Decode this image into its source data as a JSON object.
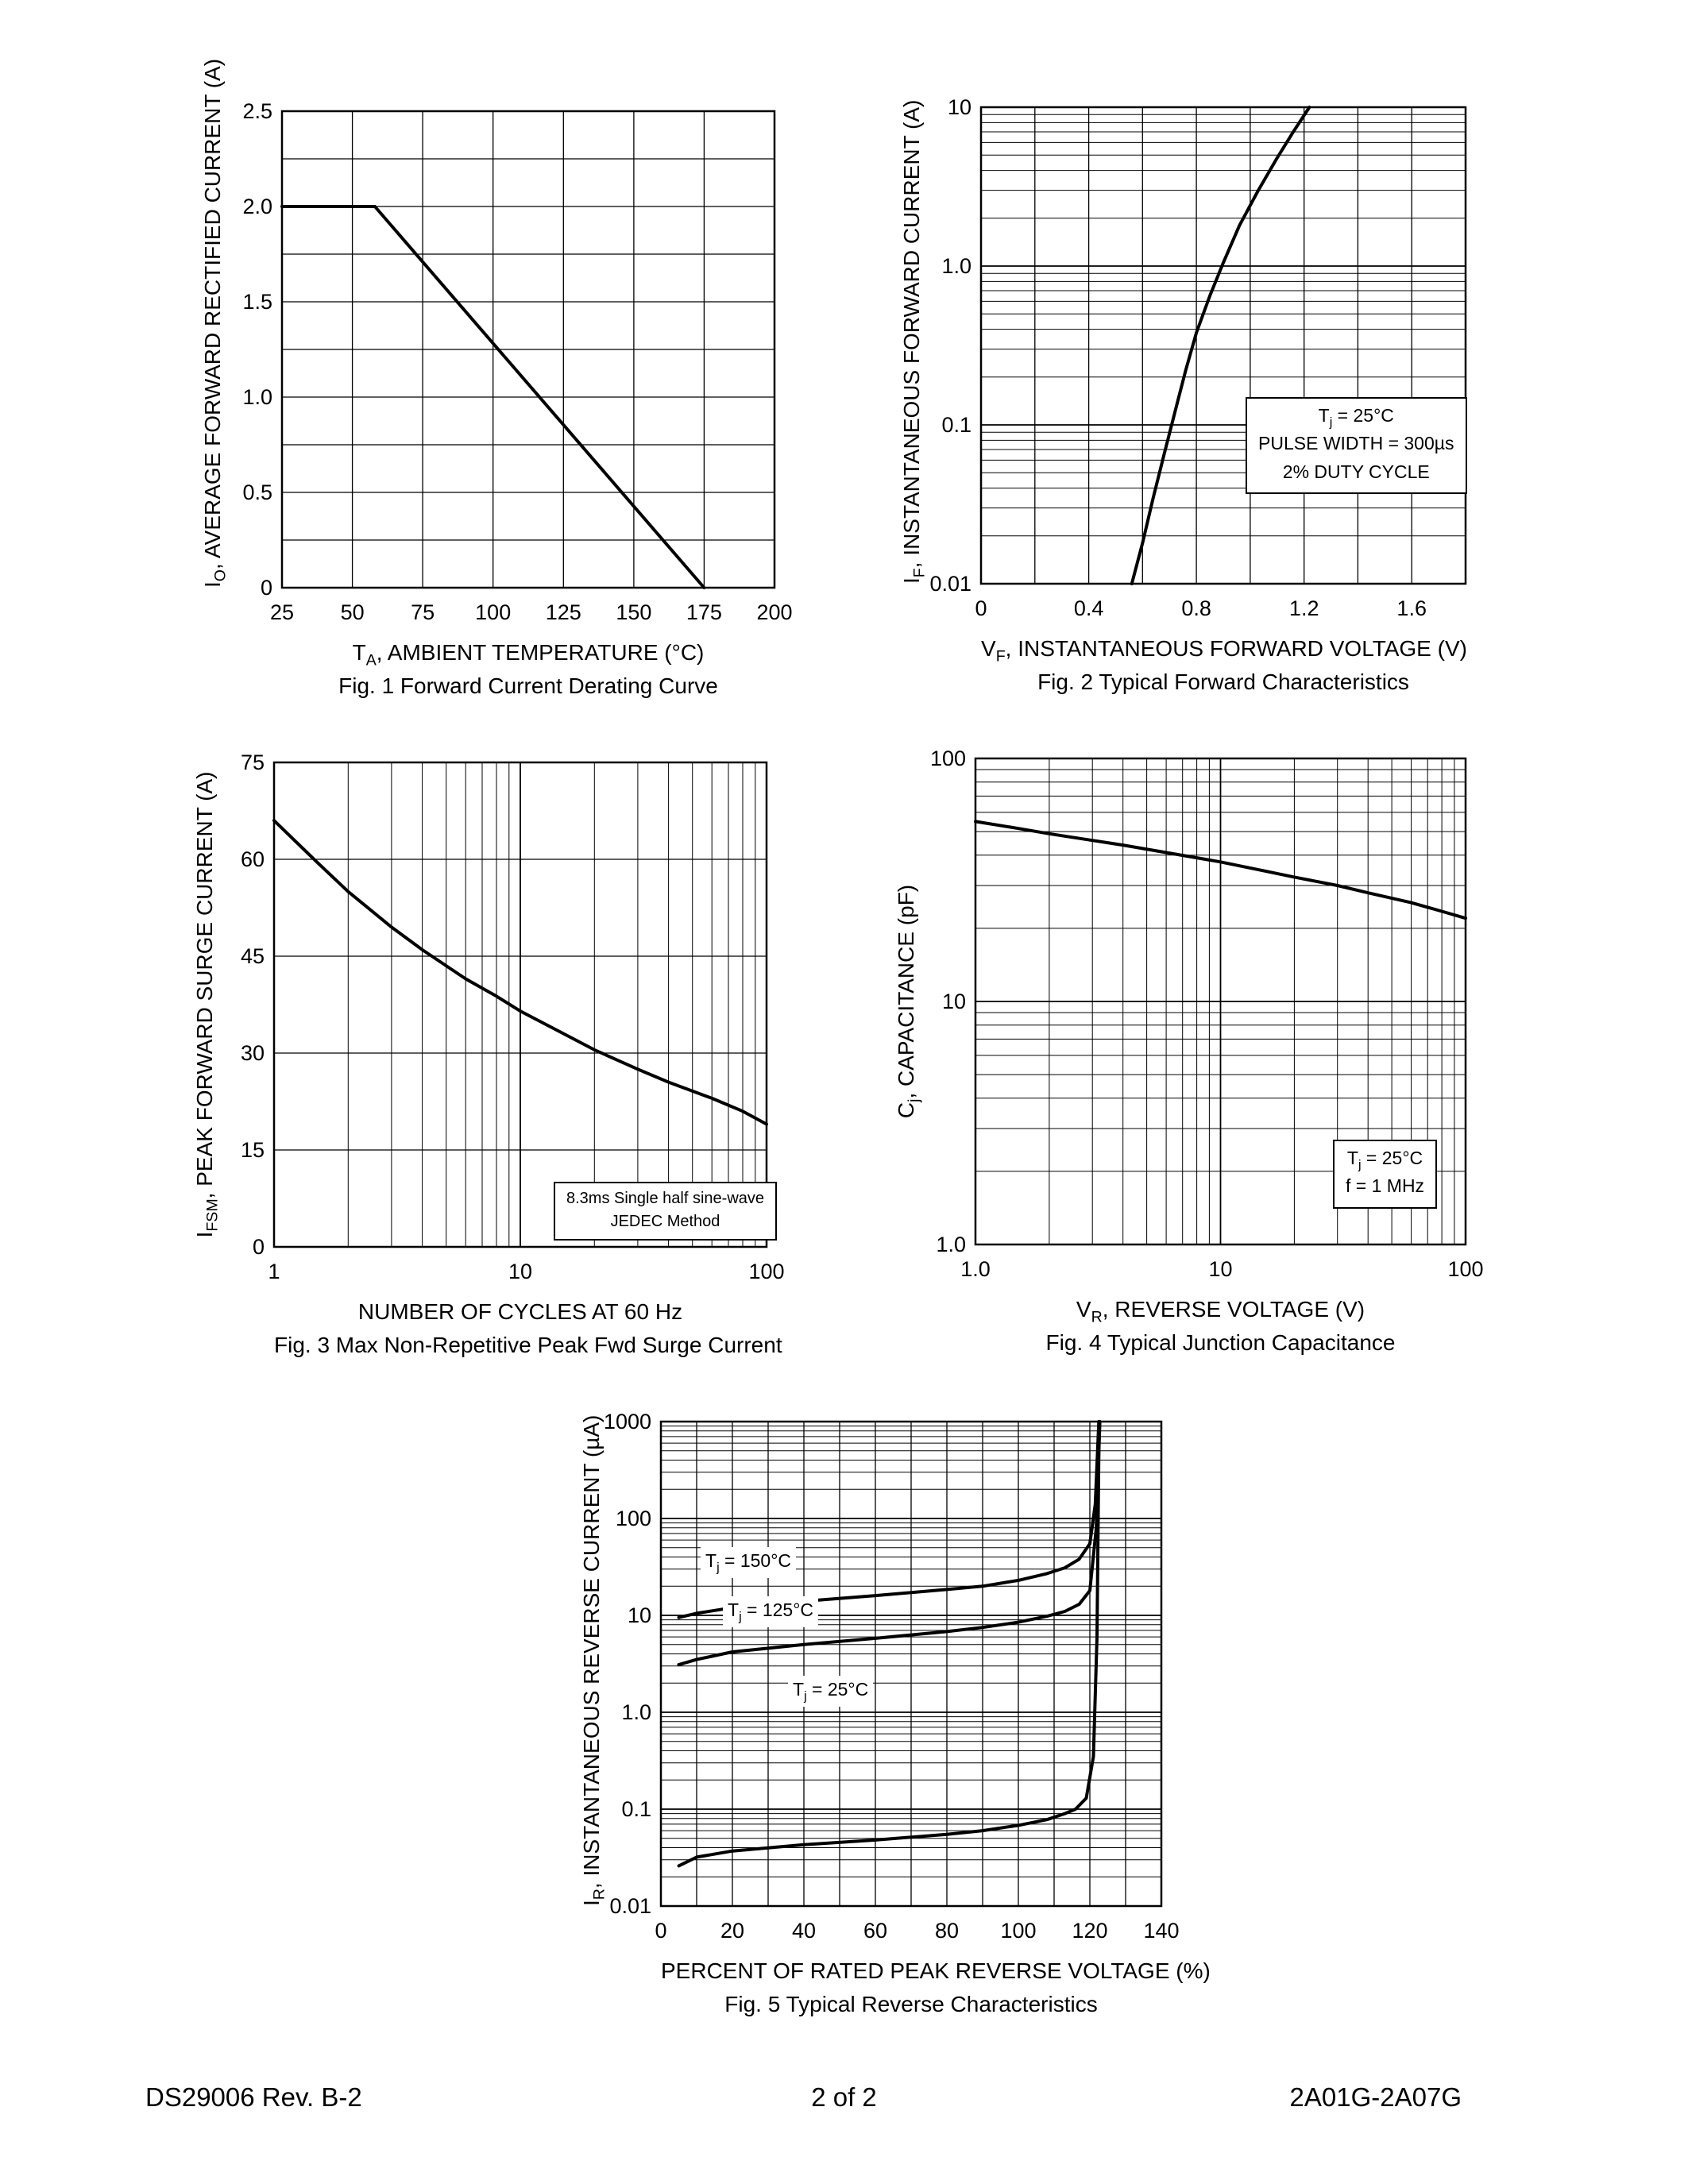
{
  "page": {
    "footer_left": "DS29006 Rev. B-2",
    "footer_center": "2 of 2",
    "footer_right": "2A01G-2A07G"
  },
  "chart_data": [
    {
      "id": "fig1",
      "type": "line",
      "caption": "Fig. 1  Forward Current Derating Curve",
      "x_label": {
        "pre": "T",
        "sub": "A",
        "post": ", AMBIENT TEMPERATURE (°C)"
      },
      "y_label": {
        "pre": "I",
        "sub": "O",
        "post": ", AVERAGE FORWARD RECTIFIED CURRENT (A)"
      },
      "x_axis": {
        "type": "linear",
        "min": 25,
        "max": 200,
        "grid_step": 25,
        "ticks": [
          {
            "v": 25,
            "label": "25"
          },
          {
            "v": 50,
            "label": "50"
          },
          {
            "v": 75,
            "label": "75"
          },
          {
            "v": 100,
            "label": "100"
          },
          {
            "v": 125,
            "label": "125"
          },
          {
            "v": 150,
            "label": "150"
          },
          {
            "v": 175,
            "label": "175"
          },
          {
            "v": 200,
            "label": "200"
          }
        ]
      },
      "y_axis": {
        "type": "linear",
        "min": 0,
        "max": 2.5,
        "grid_step": 0.25,
        "ticks": [
          {
            "v": 0,
            "label": "0"
          },
          {
            "v": 0.5,
            "label": "0.5"
          },
          {
            "v": 1,
            "label": "1.0"
          },
          {
            "v": 1.5,
            "label": "1.5"
          },
          {
            "v": 2,
            "label": "2.0"
          },
          {
            "v": 2.5,
            "label": "2.5"
          }
        ]
      },
      "series": [
        {
          "name": "forward-current-derating",
          "points": [
            [
              25,
              2.0
            ],
            [
              58,
              2.0
            ],
            [
              175,
              0.0
            ]
          ]
        }
      ],
      "annotations": []
    },
    {
      "id": "fig2",
      "type": "line",
      "caption": "Fig. 2  Typical Forward Characteristics",
      "x_label": {
        "pre": "V",
        "sub": "F",
        "post": ", INSTANTANEOUS FORWARD VOLTAGE (V)"
      },
      "y_label": {
        "pre": "I",
        "sub": "F",
        "post": ", INSTANTANEOUS FORWARD CURRENT (A)"
      },
      "x_axis": {
        "type": "linear",
        "min": 0,
        "max": 1.8,
        "grid_step": 0.2,
        "ticks": [
          {
            "v": 0,
            "label": "0"
          },
          {
            "v": 0.4,
            "label": "0.4"
          },
          {
            "v": 0.8,
            "label": "0.8"
          },
          {
            "v": 1.2,
            "label": "1.2"
          },
          {
            "v": 1.6,
            "label": "1.6"
          }
        ]
      },
      "y_axis": {
        "type": "log",
        "min": 0.01,
        "max": 10,
        "ticks": [
          {
            "v": 10,
            "label": "10"
          },
          {
            "v": 1,
            "label": "1.0"
          },
          {
            "v": 0.1,
            "label": "0.1"
          },
          {
            "v": 0.01,
            "label": "0.01"
          }
        ]
      },
      "series": [
        {
          "name": "typical-forward-characteristic",
          "points": [
            [
              0.56,
              0.01
            ],
            [
              0.6,
              0.018
            ],
            [
              0.64,
              0.035
            ],
            [
              0.68,
              0.065
            ],
            [
              0.72,
              0.12
            ],
            [
              0.76,
              0.22
            ],
            [
              0.8,
              0.38
            ],
            [
              0.85,
              0.65
            ],
            [
              0.9,
              1.05
            ],
            [
              0.96,
              1.8
            ],
            [
              1.03,
              3.0
            ],
            [
              1.1,
              4.8
            ],
            [
              1.16,
              7.0
            ],
            [
              1.22,
              10
            ]
          ]
        }
      ],
      "annotations": [
        {
          "boxed": true,
          "lines": [
            {
              "pre": "T",
              "sub": "j",
              "post": " = 25°C"
            },
            {
              "pre": "PULSE WIDTH = 300µs",
              "sub": "",
              "post": ""
            },
            {
              "pre": "2% DUTY CYCLE",
              "sub": "",
              "post": ""
            }
          ]
        }
      ]
    },
    {
      "id": "fig3",
      "type": "line",
      "caption": "Fig. 3  Max Non-Repetitive Peak Fwd Surge Current",
      "x_label": {
        "pre": "",
        "sub": "",
        "post": "NUMBER OF CYCLES AT 60 Hz"
      },
      "y_label": {
        "pre": "I",
        "sub": "FSM",
        "post": ", PEAK FORWARD SURGE CURRENT (A)"
      },
      "x_axis": {
        "type": "log",
        "min": 1,
        "max": 100,
        "ticks": [
          {
            "v": 1,
            "label": "1"
          },
          {
            "v": 10,
            "label": "10"
          },
          {
            "v": 100,
            "label": "100"
          }
        ]
      },
      "y_axis": {
        "type": "linear",
        "min": 0,
        "max": 75,
        "grid_step": 15,
        "ticks": [
          {
            "v": 0,
            "label": "0"
          },
          {
            "v": 15,
            "label": "15"
          },
          {
            "v": 30,
            "label": "30"
          },
          {
            "v": 45,
            "label": "45"
          },
          {
            "v": 60,
            "label": "60"
          },
          {
            "v": 75,
            "label": "75"
          }
        ]
      },
      "series": [
        {
          "name": "peak-forward-surge-current",
          "points": [
            [
              1,
              66
            ],
            [
              1.5,
              59.5
            ],
            [
              2,
              55
            ],
            [
              3,
              49.5
            ],
            [
              4,
              46
            ],
            [
              6,
              41.5
            ],
            [
              8,
              38.8
            ],
            [
              10,
              36.5
            ],
            [
              15,
              33
            ],
            [
              20,
              30.5
            ],
            [
              30,
              27.5
            ],
            [
              40,
              25.5
            ],
            [
              60,
              23
            ],
            [
              80,
              21
            ],
            [
              100,
              19
            ]
          ]
        }
      ],
      "annotations": [
        {
          "boxed": true,
          "lines": [
            {
              "pre": "8.3ms Single half sine-wave",
              "sub": "",
              "post": ""
            },
            {
              "pre": "JEDEC Method",
              "sub": "",
              "post": ""
            }
          ]
        }
      ]
    },
    {
      "id": "fig4",
      "type": "line",
      "caption": "Fig. 4  Typical Junction Capacitance",
      "x_label": {
        "pre": "V",
        "sub": "R",
        "post": ", REVERSE VOLTAGE (V)"
      },
      "y_label": {
        "pre": "C",
        "sub": "j",
        "post": ", CAPACITANCE (pF)"
      },
      "x_axis": {
        "type": "log",
        "min": 1,
        "max": 100,
        "ticks": [
          {
            "v": 1,
            "label": "1.0"
          },
          {
            "v": 10,
            "label": "10"
          },
          {
            "v": 100,
            "label": "100"
          }
        ]
      },
      "y_axis": {
        "type": "log",
        "min": 1,
        "max": 100,
        "ticks": [
          {
            "v": 100,
            "label": "100"
          },
          {
            "v": 10,
            "label": "10"
          },
          {
            "v": 1,
            "label": "1.0"
          }
        ]
      },
      "series": [
        {
          "name": "typical-junction-capacitance",
          "points": [
            [
              1,
              55
            ],
            [
              1.5,
              51.5
            ],
            [
              2,
              49
            ],
            [
              3,
              46
            ],
            [
              4,
              44
            ],
            [
              6,
              41
            ],
            [
              8,
              39
            ],
            [
              10,
              37.5
            ],
            [
              15,
              34.5
            ],
            [
              20,
              32.5
            ],
            [
              30,
              30
            ],
            [
              40,
              28
            ],
            [
              60,
              25.5
            ],
            [
              80,
              23.5
            ],
            [
              100,
              22
            ]
          ]
        }
      ],
      "annotations": [
        {
          "boxed": true,
          "lines": [
            {
              "pre": "T",
              "sub": "j",
              "post": " = 25°C"
            },
            {
              "pre": "f = 1 MHz",
              "sub": "",
              "post": ""
            }
          ]
        }
      ]
    },
    {
      "id": "fig5",
      "type": "line",
      "caption": "Fig. 5  Typical Reverse Characteristics",
      "x_label": {
        "pre": "",
        "sub": "",
        "post": "PERCENT OF RATED PEAK REVERSE VOLTAGE (%)"
      },
      "y_label": {
        "pre": "I",
        "sub": "R",
        "post": ", INSTANTANEOUS REVERSE CURRENT (µA)"
      },
      "x_axis": {
        "type": "linear",
        "min": 0,
        "max": 140,
        "grid_step": 10,
        "ticks": [
          {
            "v": 0,
            "label": "0"
          },
          {
            "v": 20,
            "label": "20"
          },
          {
            "v": 40,
            "label": "40"
          },
          {
            "v": 60,
            "label": "60"
          },
          {
            "v": 80,
            "label": "80"
          },
          {
            "v": 100,
            "label": "100"
          },
          {
            "v": 120,
            "label": "120"
          },
          {
            "v": 140,
            "label": "140"
          }
        ]
      },
      "y_axis": {
        "type": "log",
        "min": 0.01,
        "max": 1000,
        "ticks": [
          {
            "v": 1000,
            "label": "1000"
          },
          {
            "v": 100,
            "label": "100"
          },
          {
            "v": 10,
            "label": "10"
          },
          {
            "v": 1,
            "label": "1.0"
          },
          {
            "v": 0.1,
            "label": "0.1"
          },
          {
            "v": 0.01,
            "label": "0.01"
          }
        ]
      },
      "series": [
        {
          "name": "reverse-current-150C",
          "points": [
            [
              5,
              9.5
            ],
            [
              10,
              10.5
            ],
            [
              20,
              12
            ],
            [
              30,
              13
            ],
            [
              40,
              14
            ],
            [
              60,
              16
            ],
            [
              80,
              18.5
            ],
            [
              90,
              20
            ],
            [
              100,
              23
            ],
            [
              108,
              27
            ],
            [
              113,
              31
            ],
            [
              117,
              38
            ],
            [
              120,
              55
            ],
            [
              121.5,
              140
            ],
            [
              122.5,
              1000
            ]
          ]
        },
        {
          "name": "reverse-current-125C",
          "points": [
            [
              5,
              3.1
            ],
            [
              10,
              3.5
            ],
            [
              20,
              4.2
            ],
            [
              40,
              5
            ],
            [
              60,
              5.8
            ],
            [
              80,
              6.8
            ],
            [
              90,
              7.5
            ],
            [
              100,
              8.5
            ],
            [
              108,
              9.8
            ],
            [
              113,
              11
            ],
            [
              117,
              13
            ],
            [
              120,
              18
            ],
            [
              121.8,
              80
            ],
            [
              122.8,
              1000
            ]
          ]
        },
        {
          "name": "reverse-current-25C",
          "points": [
            [
              5,
              0.026
            ],
            [
              10,
              0.032
            ],
            [
              20,
              0.037
            ],
            [
              40,
              0.043
            ],
            [
              60,
              0.048
            ],
            [
              80,
              0.055
            ],
            [
              90,
              0.06
            ],
            [
              100,
              0.068
            ],
            [
              108,
              0.078
            ],
            [
              113,
              0.09
            ],
            [
              116,
              0.1
            ],
            [
              119,
              0.13
            ],
            [
              121,
              0.35
            ],
            [
              122,
              6
            ],
            [
              122.6,
              1000
            ]
          ]
        }
      ],
      "annotations": [
        {
          "boxed": false,
          "lines": [
            {
              "pre": "T",
              "sub": "j",
              "post": " = 150°C"
            }
          ]
        },
        {
          "boxed": false,
          "lines": [
            {
              "pre": "T",
              "sub": "j",
              "post": " = 125°C"
            }
          ]
        },
        {
          "boxed": false,
          "lines": [
            {
              "pre": "T",
              "sub": "j",
              "post": " = 25°C"
            }
          ]
        }
      ]
    }
  ]
}
